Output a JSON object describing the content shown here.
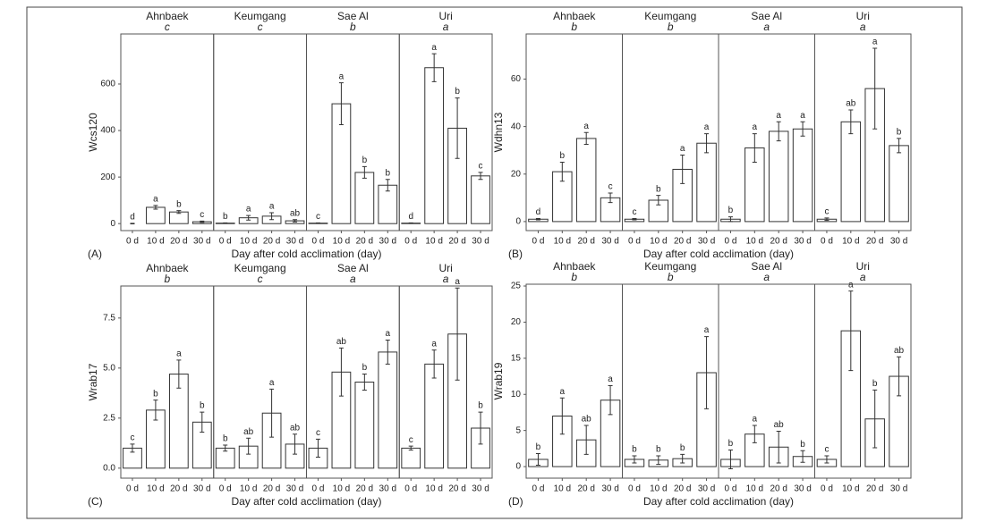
{
  "chart_data": [
    {
      "type": "bar",
      "panel_label": "(A)",
      "ylabel": "Wcs120",
      "xlabel": "Day after cold acclimation (day)",
      "categories": [
        "0 d",
        "10 d",
        "20 d",
        "30 d"
      ],
      "ylim": [
        -30,
        815
      ],
      "yticks": [
        0,
        200,
        400,
        600
      ],
      "bar_color": "#ffffff",
      "edge_color": "#333333",
      "facets": [
        {
          "name": "Ahnbaek",
          "group": "c",
          "values": [
            0,
            70,
            50,
            8
          ],
          "errors": [
            1,
            8,
            6,
            3
          ],
          "letters": [
            "d",
            "a",
            "b",
            "c"
          ]
        },
        {
          "name": "Keumgang",
          "group": "c",
          "values": [
            2,
            25,
            32,
            12
          ],
          "errors": [
            1,
            10,
            15,
            5
          ],
          "letters": [
            "b",
            "a",
            "a",
            "ab"
          ]
        },
        {
          "name": "Sae Al",
          "group": "b",
          "values": [
            2,
            515,
            220,
            165
          ],
          "errors": [
            1,
            90,
            25,
            25
          ],
          "letters": [
            "c",
            "a",
            "b",
            "b"
          ]
        },
        {
          "name": "Uri",
          "group": "a",
          "values": [
            2,
            670,
            410,
            205
          ],
          "errors": [
            1,
            60,
            130,
            15
          ],
          "letters": [
            "d",
            "a",
            "b",
            "c"
          ]
        }
      ]
    },
    {
      "type": "bar",
      "panel_label": "(B)",
      "ylabel": "Wdhn13",
      "xlabel": "Day after cold acclimation (day)",
      "categories": [
        "0 d",
        "10 d",
        "20 d",
        "30 d"
      ],
      "ylim": [
        -3.8,
        79
      ],
      "yticks": [
        0,
        20,
        40,
        60
      ],
      "bar_color": "#ffffff",
      "edge_color": "#333333",
      "facets": [
        {
          "name": "Ahnbaek",
          "group": "b",
          "values": [
            1,
            21,
            35,
            10
          ],
          "errors": [
            0.3,
            4,
            2.5,
            2
          ],
          "letters": [
            "d",
            "b",
            "a",
            "c"
          ]
        },
        {
          "name": "Keumgang",
          "group": "b",
          "values": [
            1,
            9,
            22,
            33
          ],
          "errors": [
            0.3,
            2,
            6,
            4
          ],
          "letters": [
            "c",
            "b",
            "a",
            "a"
          ]
        },
        {
          "name": "Sae Al",
          "group": "a",
          "values": [
            1,
            31,
            38,
            39
          ],
          "errors": [
            1,
            6,
            4,
            3
          ],
          "letters": [
            "b",
            "a",
            "a",
            "a"
          ]
        },
        {
          "name": "Uri",
          "group": "a",
          "values": [
            1,
            42,
            56,
            32
          ],
          "errors": [
            0.5,
            5,
            17,
            3
          ],
          "letters": [
            "c",
            "ab",
            "a",
            "b"
          ]
        }
      ]
    },
    {
      "type": "bar",
      "panel_label": "(C)",
      "ylabel": "Wrab17",
      "xlabel": "Day after cold acclimation (day)",
      "categories": [
        "0 d",
        "10 d",
        "20 d",
        "30 d"
      ],
      "ylim": [
        -0.5,
        9.1
      ],
      "yticks": [
        {
          "value": 0,
          "label": "0.0"
        },
        2.5,
        {
          "value": 5,
          "label": "5.0"
        },
        7.5
      ],
      "bar_color": "#ffffff",
      "edge_color": "#333333",
      "facets": [
        {
          "name": "Ahnbaek",
          "group": "b",
          "values": [
            1.0,
            2.9,
            4.7,
            2.3
          ],
          "errors": [
            0.2,
            0.5,
            0.7,
            0.5
          ],
          "letters": [
            "c",
            "b",
            "a",
            "b"
          ]
        },
        {
          "name": "Keumgang",
          "group": "c",
          "values": [
            1.0,
            1.1,
            2.75,
            1.2
          ],
          "errors": [
            0.15,
            0.4,
            1.2,
            0.5
          ],
          "letters": [
            "b",
            "ab",
            "a",
            "ab"
          ]
        },
        {
          "name": "Sae Al",
          "group": "a",
          "values": [
            1.0,
            4.8,
            4.3,
            5.8
          ],
          "errors": [
            0.45,
            1.2,
            0.4,
            0.6
          ],
          "letters": [
            "c",
            "ab",
            "b",
            "a"
          ]
        },
        {
          "name": "Uri",
          "group": "a",
          "values": [
            1.0,
            5.2,
            6.7,
            2.0
          ],
          "errors": [
            0.1,
            0.7,
            2.3,
            0.8
          ],
          "letters": [
            "c",
            "a",
            "a",
            "b"
          ]
        }
      ]
    },
    {
      "type": "bar",
      "panel_label": "(D)",
      "ylabel": "Wrab19",
      "xlabel": "Day after cold acclimation (day)",
      "categories": [
        "0 d",
        "10 d",
        "20 d",
        "30 d"
      ],
      "ylim": [
        -1.6,
        25.25
      ],
      "yticks": [
        0,
        5,
        10,
        15,
        20,
        25
      ],
      "bar_color": "#ffffff",
      "edge_color": "#333333",
      "facets": [
        {
          "name": "Ahnbaek",
          "group": "b",
          "values": [
            1,
            7,
            3.7,
            9.2
          ],
          "errors": [
            0.8,
            2.5,
            2,
            2
          ],
          "letters": [
            "b",
            "a",
            "ab",
            "a"
          ]
        },
        {
          "name": "Keumgang",
          "group": "b",
          "values": [
            1,
            0.9,
            1.1,
            13
          ],
          "errors": [
            0.5,
            0.6,
            0.6,
            5
          ],
          "letters": [
            "b",
            "b",
            "b",
            "a"
          ]
        },
        {
          "name": "Sae Al",
          "group": "a",
          "values": [
            1,
            4.5,
            2.7,
            1.4
          ],
          "errors": [
            1.3,
            1.2,
            2.2,
            0.8
          ],
          "letters": [
            "b",
            "a",
            "ab",
            "b"
          ]
        },
        {
          "name": "Uri",
          "group": "a",
          "values": [
            1,
            18.8,
            6.6,
            12.5
          ],
          "errors": [
            0.5,
            5.5,
            4,
            2.7
          ],
          "letters": [
            "c",
            "a",
            "b",
            "ab"
          ]
        }
      ]
    }
  ]
}
